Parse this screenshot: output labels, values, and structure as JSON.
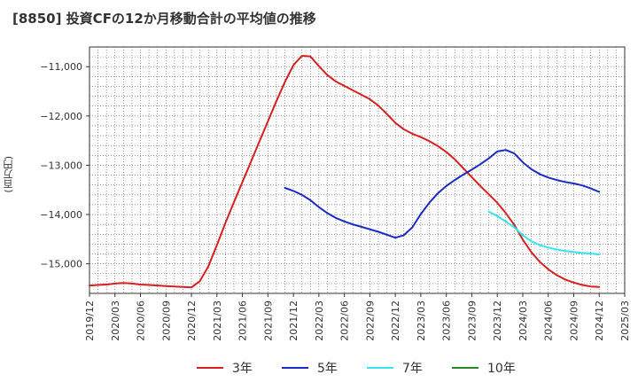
{
  "title": "[8850]  投資CFの12か月移動合計の平均値の推移",
  "y_unit": "(百万円)",
  "chart_data": {
    "type": "line",
    "title": "[8850]  投資CFの12か月移動合計の平均値の推移",
    "ylabel": "(百万円)",
    "xlabel": "",
    "x_ticks": [
      "2019/12",
      "2020/03",
      "2020/06",
      "2020/09",
      "2020/12",
      "2021/03",
      "2021/06",
      "2021/09",
      "2021/12",
      "2022/03",
      "2022/06",
      "2022/09",
      "2022/12",
      "2023/03",
      "2023/06",
      "2023/09",
      "2023/12",
      "2024/03",
      "2024/06",
      "2024/09",
      "2024/12",
      "2025/03"
    ],
    "y_ticks": [
      -11000,
      -12000,
      -13000,
      -14000,
      -15000
    ],
    "y_tick_labels": [
      "−11,000",
      "−12,000",
      "−13,000",
      "−14,000",
      "−15,000"
    ],
    "xlim": [
      "2019/12",
      "2025/03"
    ],
    "ylim": [
      -15600,
      -10600
    ],
    "grid": true,
    "legend_position": "bottom",
    "series": [
      {
        "name": "3年",
        "color": "#d62020",
        "points": [
          [
            "2019/12",
            -15440
          ],
          [
            "2020/01",
            -15430
          ],
          [
            "2020/02",
            -15420
          ],
          [
            "2020/03",
            -15400
          ],
          [
            "2020/04",
            -15390
          ],
          [
            "2020/05",
            -15400
          ],
          [
            "2020/06",
            -15420
          ],
          [
            "2020/07",
            -15430
          ],
          [
            "2020/08",
            -15440
          ],
          [
            "2020/09",
            -15450
          ],
          [
            "2020/10",
            -15460
          ],
          [
            "2020/11",
            -15470
          ],
          [
            "2020/12",
            -15480
          ],
          [
            "2021/01",
            -15350
          ],
          [
            "2021/02",
            -15050
          ],
          [
            "2021/03",
            -14620
          ],
          [
            "2021/04",
            -14170
          ],
          [
            "2021/05",
            -13750
          ],
          [
            "2021/06",
            -13340
          ],
          [
            "2021/07",
            -12930
          ],
          [
            "2021/08",
            -12520
          ],
          [
            "2021/09",
            -12110
          ],
          [
            "2021/10",
            -11700
          ],
          [
            "2021/11",
            -11310
          ],
          [
            "2021/12",
            -10970
          ],
          [
            "2022/01",
            -10780
          ],
          [
            "2022/02",
            -10790
          ],
          [
            "2022/03",
            -10990
          ],
          [
            "2022/04",
            -11170
          ],
          [
            "2022/05",
            -11300
          ],
          [
            "2022/06",
            -11390
          ],
          [
            "2022/07",
            -11480
          ],
          [
            "2022/08",
            -11570
          ],
          [
            "2022/09",
            -11660
          ],
          [
            "2022/10",
            -11790
          ],
          [
            "2022/11",
            -11960
          ],
          [
            "2022/12",
            -12140
          ],
          [
            "2023/01",
            -12270
          ],
          [
            "2023/02",
            -12360
          ],
          [
            "2023/03",
            -12430
          ],
          [
            "2023/04",
            -12510
          ],
          [
            "2023/05",
            -12610
          ],
          [
            "2023/06",
            -12730
          ],
          [
            "2023/07",
            -12880
          ],
          [
            "2023/08",
            -13060
          ],
          [
            "2023/09",
            -13240
          ],
          [
            "2023/10",
            -13420
          ],
          [
            "2023/11",
            -13590
          ],
          [
            "2023/12",
            -13760
          ],
          [
            "2024/01",
            -13970
          ],
          [
            "2024/02",
            -14210
          ],
          [
            "2024/03",
            -14510
          ],
          [
            "2024/04",
            -14760
          ],
          [
            "2024/05",
            -14960
          ],
          [
            "2024/06",
            -15110
          ],
          [
            "2024/07",
            -15230
          ],
          [
            "2024/08",
            -15320
          ],
          [
            "2024/09",
            -15380
          ],
          [
            "2024/10",
            -15430
          ],
          [
            "2024/11",
            -15460
          ],
          [
            "2024/12",
            -15470
          ]
        ]
      },
      {
        "name": "5年",
        "color": "#1a2ac4",
        "points": [
          [
            "2021/11",
            -13460
          ],
          [
            "2021/12",
            -13520
          ],
          [
            "2022/01",
            -13600
          ],
          [
            "2022/02",
            -13710
          ],
          [
            "2022/03",
            -13850
          ],
          [
            "2022/04",
            -13970
          ],
          [
            "2022/05",
            -14070
          ],
          [
            "2022/06",
            -14140
          ],
          [
            "2022/07",
            -14200
          ],
          [
            "2022/08",
            -14250
          ],
          [
            "2022/09",
            -14300
          ],
          [
            "2022/10",
            -14350
          ],
          [
            "2022/11",
            -14410
          ],
          [
            "2022/12",
            -14470
          ],
          [
            "2023/01",
            -14420
          ],
          [
            "2023/02",
            -14260
          ],
          [
            "2023/03",
            -13990
          ],
          [
            "2023/04",
            -13760
          ],
          [
            "2023/05",
            -13570
          ],
          [
            "2023/06",
            -13420
          ],
          [
            "2023/07",
            -13300
          ],
          [
            "2023/08",
            -13190
          ],
          [
            "2023/09",
            -13090
          ],
          [
            "2023/10",
            -12980
          ],
          [
            "2023/11",
            -12860
          ],
          [
            "2023/12",
            -12720
          ],
          [
            "2024/01",
            -12690
          ],
          [
            "2024/02",
            -12760
          ],
          [
            "2024/03",
            -12940
          ],
          [
            "2024/04",
            -13080
          ],
          [
            "2024/05",
            -13180
          ],
          [
            "2024/06",
            -13250
          ],
          [
            "2024/07",
            -13300
          ],
          [
            "2024/08",
            -13340
          ],
          [
            "2024/09",
            -13370
          ],
          [
            "2024/10",
            -13410
          ],
          [
            "2024/11",
            -13470
          ],
          [
            "2024/12",
            -13540
          ]
        ]
      },
      {
        "name": "7年",
        "color": "#33e5f0",
        "points": [
          [
            "2023/11",
            -13940
          ],
          [
            "2023/12",
            -14030
          ],
          [
            "2024/01",
            -14140
          ],
          [
            "2024/02",
            -14260
          ],
          [
            "2024/03",
            -14420
          ],
          [
            "2024/04",
            -14540
          ],
          [
            "2024/05",
            -14620
          ],
          [
            "2024/06",
            -14670
          ],
          [
            "2024/07",
            -14710
          ],
          [
            "2024/08",
            -14740
          ],
          [
            "2024/09",
            -14760
          ],
          [
            "2024/10",
            -14780
          ],
          [
            "2024/11",
            -14790
          ],
          [
            "2024/12",
            -14810
          ]
        ]
      },
      {
        "name": "10年",
        "color": "#2a8a2a",
        "points": []
      }
    ]
  }
}
